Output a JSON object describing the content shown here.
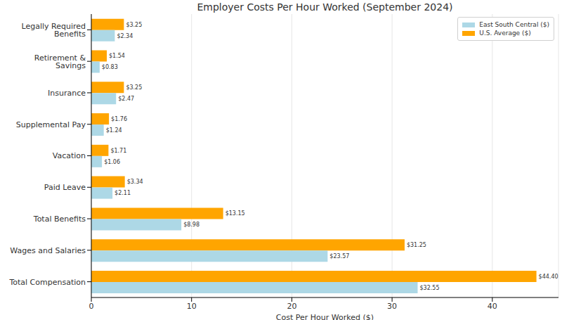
{
  "chart_data": {
    "type": "bar",
    "title": "Employer Costs Per Hour Worked (September 2024)",
    "x_label": "Cost Per Hour Worked ($)",
    "orientation": "horizontal",
    "categories": [
      "Legally Required Benefits",
      "Retirement & Savings",
      "Insurance",
      "Supplemental Pay",
      "Vacation",
      "Paid Leave",
      "Total Benefits",
      "Wages and Salaries",
      "Total Compensation"
    ],
    "series": [
      {
        "name": "East South Central ($)",
        "color": "#add8e6",
        "values": [
          2.34,
          0.83,
          2.47,
          1.24,
          1.06,
          2.11,
          8.98,
          23.57,
          32.55
        ],
        "value_labels": [
          "$2.34",
          "$0.83",
          "$2.47",
          "$1.24",
          "$1.06",
          "$2.11",
          "$8.98",
          "$23.57",
          "$32.55"
        ]
      },
      {
        "name": "U.S. Average ($)",
        "color": "#ffa500",
        "values": [
          3.25,
          1.54,
          3.25,
          1.76,
          1.71,
          3.34,
          13.15,
          31.25,
          44.4
        ],
        "value_labels": [
          "$3.25",
          "$1.54",
          "$3.25",
          "$1.76",
          "$1.71",
          "$3.34",
          "$13.15",
          "$31.25",
          "$44.40"
        ]
      }
    ],
    "xlim": [
      0,
      46.6
    ],
    "xticks": [
      0,
      10,
      20,
      30,
      40
    ],
    "grid": true,
    "legend": "upper right",
    "data_labels": true
  }
}
